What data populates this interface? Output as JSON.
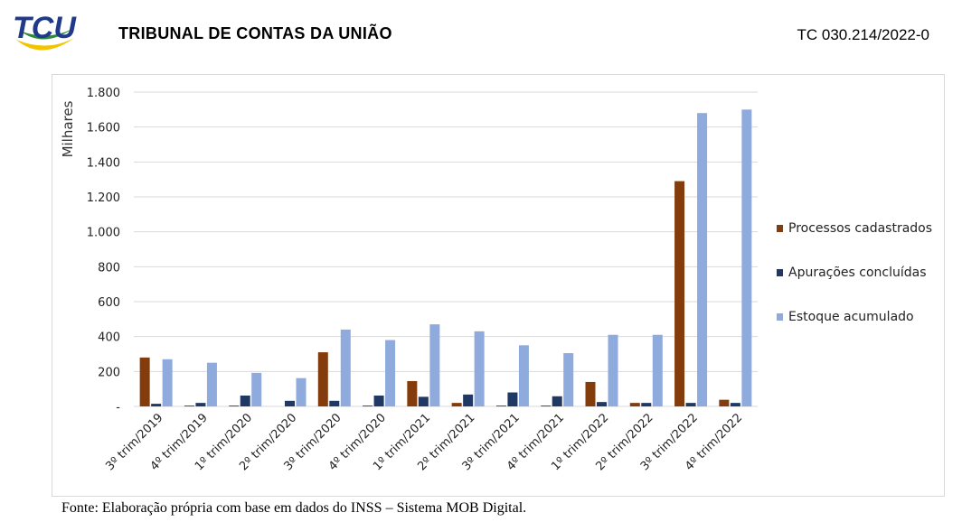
{
  "header": {
    "logo_text": "TCU",
    "org_name": "TRIBUNAL DE CONTAS DA UNIÃO",
    "doc_number": "TC 030.214/2022-0"
  },
  "caption": "Fonte: Elaboração própria com base em dados do INSS – Sistema MOB Digital.",
  "colors": {
    "processos": "#843c0c",
    "apuracoes": "#203864",
    "estoque": "#8faadc",
    "grid": "#d9d9d9",
    "logo_blue": "#1f3a8a",
    "logo_green": "#2e8b3a",
    "logo_yellow": "#f2c400"
  },
  "chart_data": {
    "type": "bar",
    "ylabel": "Milhares",
    "ylim": [
      0,
      1800
    ],
    "yticks": [
      0,
      200,
      400,
      600,
      800,
      1000,
      1200,
      1400,
      1600,
      1800
    ],
    "ytick_labels": [
      "-",
      "200",
      "400",
      "600",
      "800",
      "1.000",
      "1.200",
      "1.400",
      "1.600",
      "1.800"
    ],
    "grid": true,
    "legend_position": "right",
    "categories": [
      "3º trim/2019",
      "4º trim/2019",
      "1º trim/2020",
      "2º trim/2020",
      "3º trim/2020",
      "4º trim/2020",
      "1º trim/2021",
      "2º trim/2021",
      "3º trim/2021",
      "4º trim/2021",
      "1º trim/2022",
      "2º trim/2022",
      "3º trim/2022",
      "4º trim/2022"
    ],
    "series": [
      {
        "name": "Processos cadastrados",
        "values": [
          280,
          5,
          5,
          0,
          310,
          5,
          145,
          20,
          5,
          5,
          140,
          20,
          1290,
          38
        ]
      },
      {
        "name": "Apurações concluídas",
        "values": [
          15,
          20,
          62,
          32,
          32,
          62,
          55,
          68,
          80,
          58,
          25,
          20,
          20,
          20
        ]
      },
      {
        "name": "Estoque acumulado",
        "values": [
          270,
          250,
          192,
          162,
          440,
          380,
          470,
          430,
          350,
          305,
          410,
          410,
          1680,
          1700
        ]
      }
    ]
  }
}
